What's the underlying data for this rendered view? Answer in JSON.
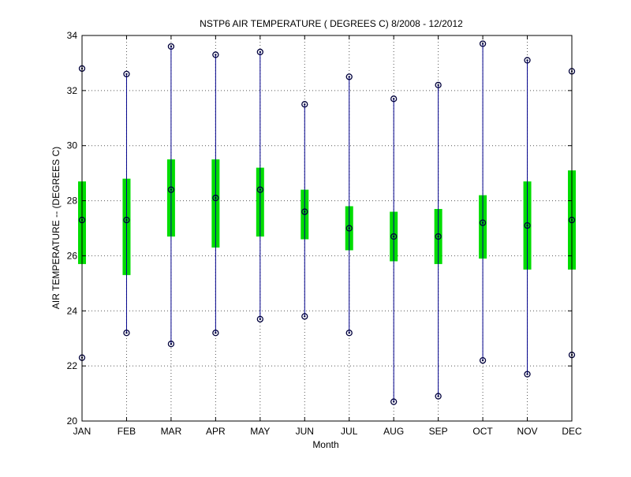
{
  "chart_data": {
    "type": "boxplot",
    "title": "NSTP6  AIR TEMPERATURE ( DEGREES C) 8/2008 - 12/2012",
    "xlabel": "Month",
    "ylabel": "AIR TEMPERATURE -- (DEGREES C)",
    "ylim": [
      20,
      34
    ],
    "yticks": [
      20,
      22,
      24,
      26,
      28,
      30,
      32,
      34
    ],
    "grid": true,
    "categories": [
      "JAN",
      "FEB",
      "MAR",
      "APR",
      "MAY",
      "JUN",
      "JUL",
      "AUG",
      "SEP",
      "OCT",
      "NOV",
      "DEC"
    ],
    "series": [
      {
        "min": [
          22.3,
          23.2,
          22.8,
          23.2,
          23.7,
          23.8,
          23.2,
          20.7,
          20.9,
          22.2,
          21.7,
          22.4
        ],
        "q1": [
          25.7,
          25.3,
          26.7,
          26.3,
          26.7,
          26.6,
          26.2,
          25.8,
          25.7,
          25.9,
          25.5,
          25.5
        ],
        "median": [
          27.3,
          27.3,
          28.4,
          28.1,
          28.4,
          27.6,
          27.0,
          26.7,
          26.7,
          27.2,
          27.1,
          27.3
        ],
        "q3": [
          28.7,
          28.8,
          29.5,
          29.5,
          29.2,
          28.4,
          27.8,
          27.6,
          27.7,
          28.2,
          28.7,
          29.1
        ],
        "max": [
          32.8,
          32.6,
          33.6,
          33.3,
          33.4,
          31.5,
          32.5,
          31.7,
          32.2,
          33.7,
          33.1,
          32.7
        ]
      }
    ],
    "colors": {
      "whisker": "#00008b",
      "box": "#00dd00",
      "marker": "#00003c",
      "grid": "#555555",
      "axis": "#000000"
    }
  }
}
